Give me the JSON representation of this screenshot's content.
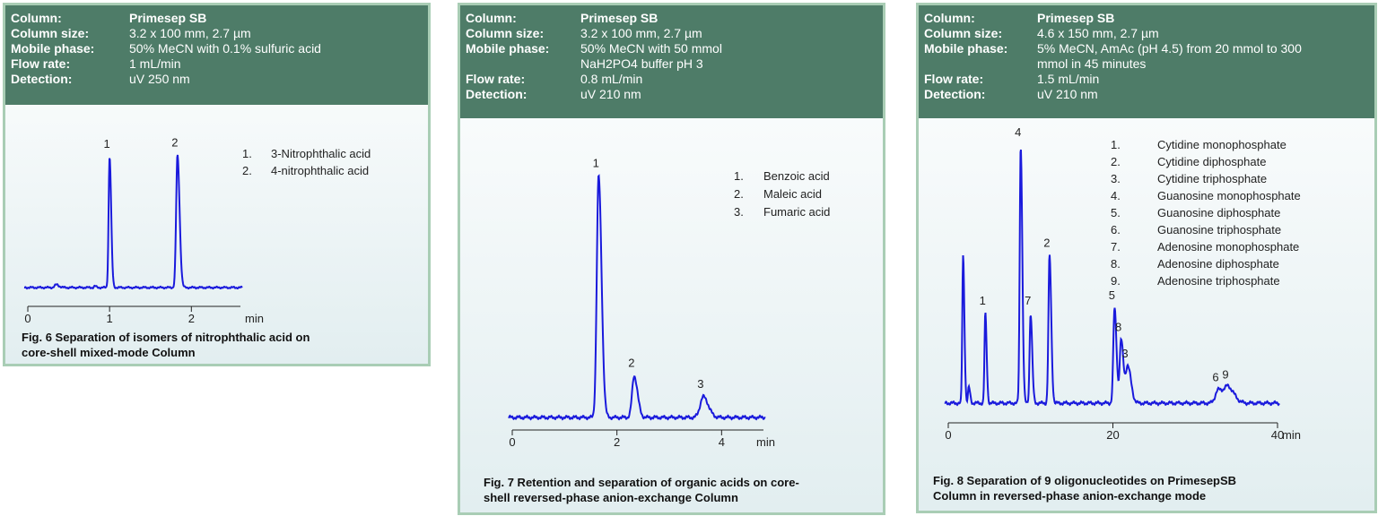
{
  "panels": [
    {
      "header": [
        {
          "label": "Column:",
          "value": "Primesep SB",
          "bold": true
        },
        {
          "label": "Column size:",
          "value": "3.2 x 100 mm, 2.7 µm"
        },
        {
          "label": "Mobile phase:",
          "value": "50% MeCN with 0.1%  sulfuric acid"
        },
        {
          "label": "Flow rate:",
          "value": "1 mL/min"
        },
        {
          "label": "Detection:",
          "value": "uV 250 nm"
        }
      ],
      "caption": [
        "Fig. 6 Separation of isomers of nitrophthalic acid on",
        "core-shell mixed-mode Column"
      ]
    },
    {
      "header": [
        {
          "label": "Column:",
          "value": "Primesep SB",
          "bold": true
        },
        {
          "label": "Column size:",
          "value": " 3.2 x 100 mm,  2.7 µm"
        },
        {
          "label": "Mobile phase:",
          "value": "50% MeCN with 50 mmol"
        },
        {
          "label": "",
          "value": "NaH2PO4 buffer  pH 3"
        },
        {
          "label": "Flow rate:",
          "value": "0.8 mL/min"
        },
        {
          "label": "Detection:",
          "value": "uV 210 nm"
        }
      ],
      "caption": [
        "Fig. 7 Retention and separation of organic acids on core-",
        "shell reversed-phase anion-exchange Column"
      ]
    },
    {
      "header": [
        {
          "label": "Column:",
          "value": "Primesep SB",
          "bold": true
        },
        {
          "label": "Column size:",
          "value": " 4.6 x 150 mm,  2.7 µm"
        },
        {
          "label": "Mobile phase:",
          "value": "5% MeCN, AmAc (pH 4.5) from 20 mmol to 300"
        },
        {
          "label": "",
          "value": "mmol in 45 minutes"
        },
        {
          "label": "Flow rate:",
          "value": "1.5 mL/min"
        },
        {
          "label": "Detection:",
          "value": "uV 210 nm"
        }
      ],
      "caption": [
        "Fig. 8 Separation of 9 oligonucleotides on PrimesepSB",
        "Column in reversed-phase anion-exchange mode"
      ]
    }
  ],
  "chart_data": [
    {
      "type": "line",
      "xlabel": "min",
      "xlim": [
        0,
        2.6
      ],
      "xticks": [
        0,
        1,
        2
      ],
      "ylim": [
        0,
        1
      ],
      "baseline": 0.02,
      "line_color": "#1a1adc",
      "peaks": [
        {
          "label": "1",
          "x": 1.0,
          "height": 0.92,
          "width": 0.012
        },
        {
          "label": "2",
          "x": 1.83,
          "height": 0.93,
          "width": 0.016
        }
      ],
      "minor_peaks": [
        {
          "x": 0.35,
          "height": 0.04,
          "width": 0.02
        },
        {
          "x": 0.82,
          "height": 0.03,
          "width": 0.01
        }
      ],
      "legend": [
        {
          "num": "1.",
          "name": "3-Nitrophthalic acid"
        },
        {
          "num": "2.",
          "name": "4-nitrophthalic acid"
        }
      ]
    },
    {
      "type": "line",
      "xlabel": "min",
      "xlim": [
        0,
        4.8
      ],
      "xticks": [
        0,
        2,
        4
      ],
      "ylim": [
        0,
        1
      ],
      "baseline": 0.02,
      "line_color": "#1a1adc",
      "peaks": [
        {
          "label": "1",
          "x": 1.65,
          "height": 0.95,
          "width": 0.035
        },
        {
          "label": "2",
          "x": 2.33,
          "height": 0.18,
          "width": 0.04
        },
        {
          "label": "3",
          "x": 3.65,
          "height": 0.1,
          "width": 0.06
        }
      ],
      "minor_peaks": [],
      "legend": [
        {
          "num": "1.",
          "name": "Benzoic acid"
        },
        {
          "num": "2.",
          "name": "Maleic acid"
        },
        {
          "num": "3.",
          "name": "Fumaric acid"
        }
      ]
    },
    {
      "type": "line",
      "xlabel": "min",
      "xlim": [
        0,
        40
      ],
      "xticks": [
        0,
        20,
        40
      ],
      "ylim": [
        0,
        1
      ],
      "baseline": 0.02,
      "line_color": "#1a1adc",
      "peaks": [
        {
          "label": "1",
          "x": 4.5,
          "height": 0.36,
          "width": 0.1
        },
        {
          "label": "4",
          "x": 8.8,
          "height": 1.0,
          "width": 0.12
        },
        {
          "label": "7",
          "x": 10.0,
          "height": 0.36,
          "width": 0.12
        },
        {
          "label": "2",
          "x": 12.3,
          "height": 0.58,
          "width": 0.13
        },
        {
          "label": "5",
          "x": 20.2,
          "height": 0.38,
          "width": 0.15
        },
        {
          "label": "8",
          "x": 21.0,
          "height": 0.26,
          "width": 0.17
        },
        {
          "label": "3",
          "x": 21.8,
          "height": 0.16,
          "width": 0.25
        },
        {
          "label": "6",
          "x": 32.8,
          "height": 0.07,
          "width": 0.35
        },
        {
          "label": "9",
          "x": 34.0,
          "height": 0.08,
          "width": 0.45
        }
      ],
      "minor_peaks": [
        {
          "x": 1.8,
          "height": 0.58,
          "width": 0.08
        },
        {
          "x": 2.5,
          "height": 0.08,
          "width": 0.06
        }
      ],
      "legend": [
        {
          "num": "1.",
          "name": "Cytidine monophosphate"
        },
        {
          "num": "2.",
          "name": "Cytidine diphosphate"
        },
        {
          "num": "3.",
          "name": "Cytidine triphosphate"
        },
        {
          "num": "4.",
          "name": "Guanosine monophosphate"
        },
        {
          "num": "5.",
          "name": "Guanosine diphosphate"
        },
        {
          "num": "6.",
          "name": "Guanosine triphosphate"
        },
        {
          "num": "7.",
          "name": "Adenosine monophosphate"
        },
        {
          "num": "8.",
          "name": "Adenosine diphosphate"
        },
        {
          "num": "9.",
          "name": "Adenosine triphosphate"
        }
      ]
    }
  ]
}
